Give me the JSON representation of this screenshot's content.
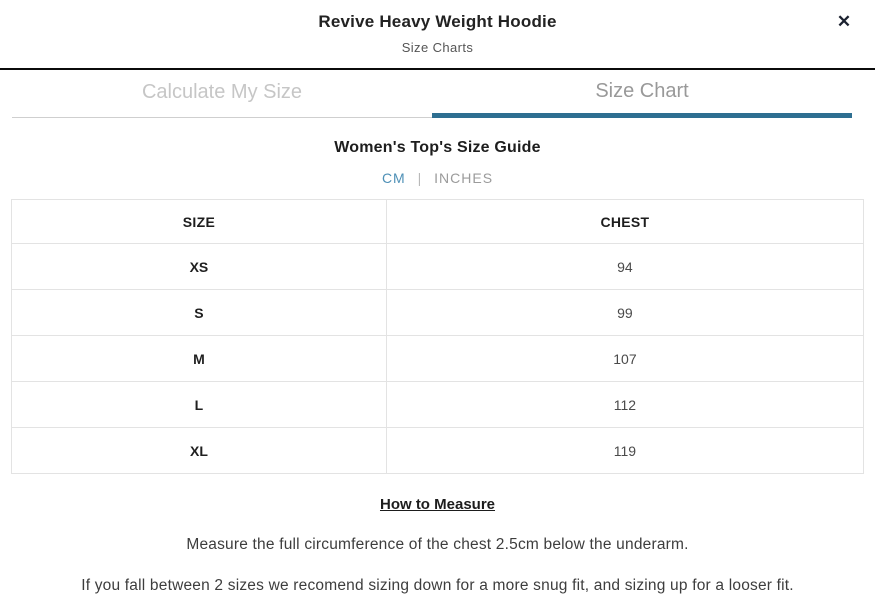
{
  "modal": {
    "title": "Revive Heavy Weight Hoodie",
    "subtitle": "Size Charts",
    "close_icon": "✕"
  },
  "tabs": [
    {
      "label": "Calculate My Size",
      "active": false
    },
    {
      "label": "Size Chart",
      "active": true
    }
  ],
  "size_guide": {
    "heading": "Women's Top's Size Guide",
    "units": {
      "selected": "CM",
      "separator": "|",
      "cm_label": "CM",
      "inches_label": "INCHES"
    },
    "table": {
      "columns": [
        "SIZE",
        "CHEST"
      ],
      "rows": [
        {
          "size": "XS",
          "chest": "94"
        },
        {
          "size": "S",
          "chest": "99"
        },
        {
          "size": "M",
          "chest": "107"
        },
        {
          "size": "L",
          "chest": "112"
        },
        {
          "size": "XL",
          "chest": "119"
        }
      ]
    }
  },
  "how_to_measure": {
    "heading": "How to Measure",
    "line1": "Measure the full circumference of the chest 2.5cm below the underarm.",
    "line2": "If you fall between 2 sizes we recomend sizing down for a more snug fit, and sizing up for a looser fit."
  },
  "colors": {
    "accent_teal": "#2e6f91",
    "cm_blue": "#4e90b6",
    "header_border": "#0b0b0b",
    "table_border": "#e3e3e3",
    "inactive_tab": "#c6c6c6",
    "active_tab_text": "#999999"
  }
}
